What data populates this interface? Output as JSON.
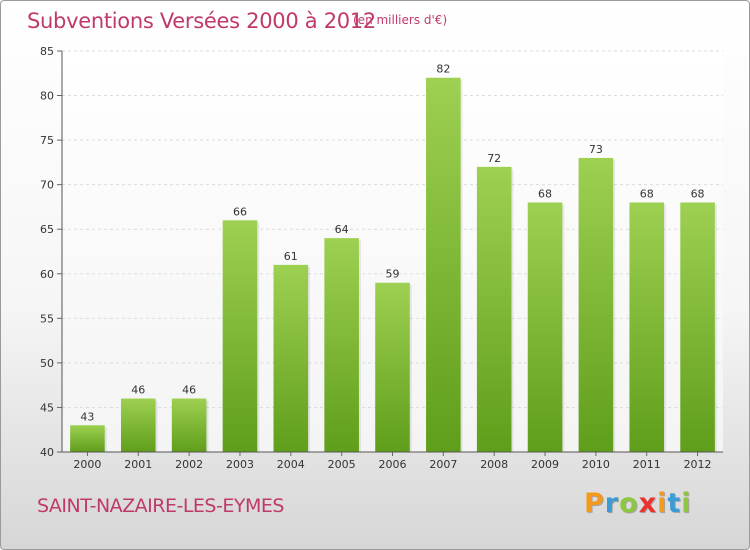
{
  "header": {
    "title": "Subventions Versées 2000 à 2012",
    "unit": "(en milliers d'€)"
  },
  "footer": {
    "commune": "SAINT-NAZAIRE-LES-EYMES",
    "logo_letters": [
      "P",
      "r",
      "o",
      "x",
      "i",
      "t",
      "i"
    ],
    "logo_colors": [
      "#f39a1e",
      "#3a9bd5",
      "#8dc63f",
      "#e8322e",
      "#f39a1e",
      "#3a9bd5",
      "#8dc63f"
    ]
  },
  "chart_data": {
    "type": "bar",
    "title": "Subventions Versées 2000 à 2012",
    "xlabel": "",
    "ylabel": "",
    "categories": [
      "2000",
      "2001",
      "2002",
      "2003",
      "2004",
      "2005",
      "2006",
      "2007",
      "2008",
      "2009",
      "2010",
      "2011",
      "2012"
    ],
    "values": [
      43,
      46,
      46,
      66,
      61,
      64,
      59,
      82,
      72,
      68,
      73,
      68,
      68
    ],
    "ylim": [
      40,
      85
    ],
    "yticks": [
      40,
      45,
      50,
      55,
      60,
      65,
      70,
      75,
      80,
      85
    ],
    "grid": true,
    "bar_color_top": "#9ed052",
    "bar_color_bottom": "#5f9e1a"
  }
}
